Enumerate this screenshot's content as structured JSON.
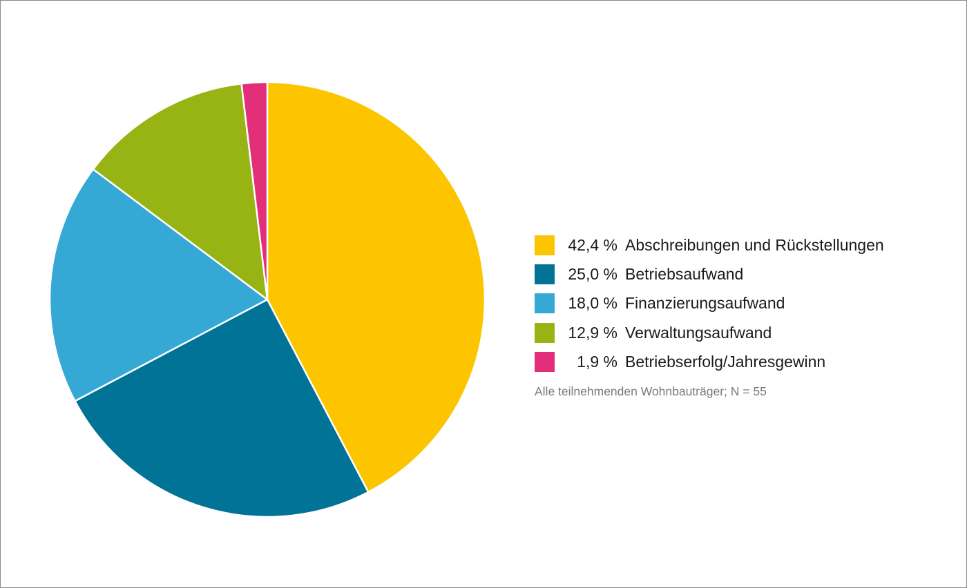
{
  "chart_data": {
    "type": "pie",
    "slices": [
      {
        "value_label": "42,4 %",
        "value": 42.4,
        "label": "Abschreibungen und Rückstellungen",
        "color": "#fcc500"
      },
      {
        "value_label": "25,0 %",
        "value": 25.0,
        "label": "Betriebsaufwand",
        "color": "#007396"
      },
      {
        "value_label": "18,0 %",
        "value": 18.0,
        "label": "Finanzierungsaufwand",
        "color": "#35a8d6"
      },
      {
        "value_label": "12,9 %",
        "value": 12.9,
        "label": "Verwaltungsaufwand",
        "color": "#97b414"
      },
      {
        "value_label": "1,9 %",
        "value": 1.9,
        "label": "Betriebserfolg/Jahresgewinn",
        "color": "#e32e7a"
      }
    ],
    "legend_position": "right",
    "start": "top",
    "direction": "clockwise"
  },
  "note": "Alle teilnehmenden Wohnbauträger; N = 55"
}
